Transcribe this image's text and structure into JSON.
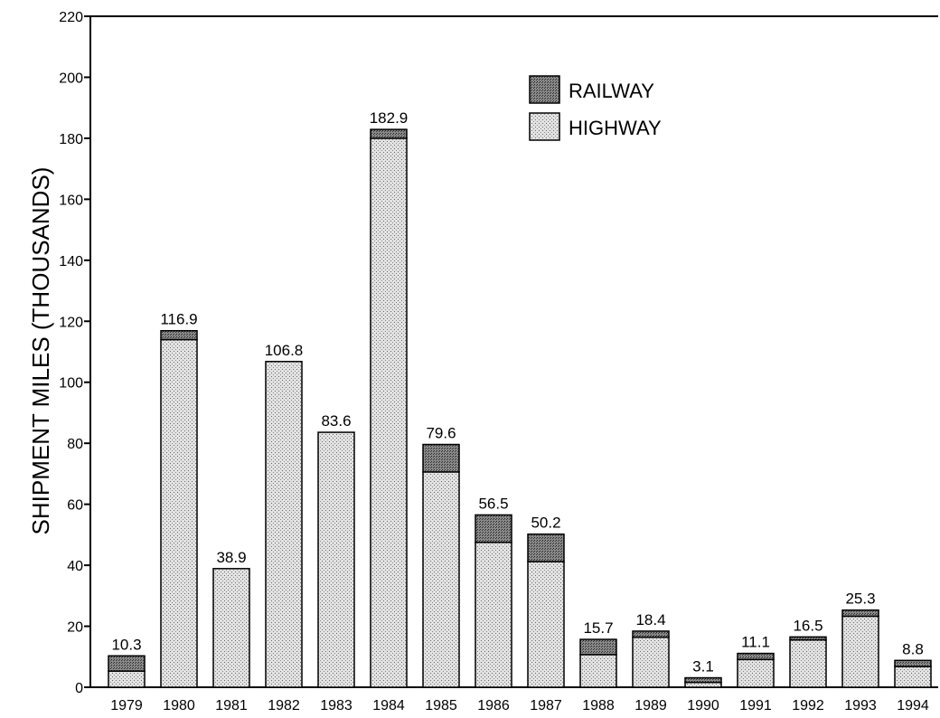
{
  "chart_data": {
    "type": "bar",
    "stacked": true,
    "title": "",
    "xlabel": "",
    "ylabel": "SHIPMENT MILES (THOUSANDS)",
    "ylim": [
      0,
      220
    ],
    "yticks": [
      0,
      20,
      40,
      60,
      80,
      100,
      120,
      140,
      160,
      180,
      200,
      220
    ],
    "grid": false,
    "legend_position": "top-right",
    "categories": [
      "1979",
      "1980",
      "1981",
      "1982",
      "1983",
      "1984",
      "1985",
      "1986",
      "1987",
      "1988",
      "1989",
      "1990",
      "1991",
      "1992",
      "1993",
      "1994"
    ],
    "series": [
      {
        "name": "HIGHWAY",
        "values": [
          5.3,
          114.0,
          38.9,
          106.8,
          83.6,
          180.0,
          70.6,
          47.5,
          41.2,
          10.7,
          16.4,
          1.6,
          9.1,
          15.5,
          23.3,
          6.8
        ]
      },
      {
        "name": "RAILWAY",
        "values": [
          5.0,
          2.9,
          0.0,
          0.0,
          0.0,
          2.9,
          9.0,
          9.0,
          9.0,
          5.0,
          2.0,
          1.5,
          2.0,
          1.0,
          2.0,
          2.0
        ]
      }
    ],
    "totals": [
      10.3,
      116.9,
      38.9,
      106.8,
      83.6,
      182.9,
      79.6,
      56.5,
      50.2,
      15.7,
      18.4,
      3.1,
      11.1,
      16.5,
      25.3,
      8.8
    ],
    "total_labels": [
      "10.3",
      "116.9",
      "38.9",
      "106.8",
      "83.6",
      "182.9",
      "79.6",
      "56.5",
      "50.2",
      "15.7",
      "18.4",
      "3.1",
      "11.1",
      "16.5",
      "25.3",
      "8.8"
    ],
    "legend_entries": [
      "RAILWAY",
      "HIGHWAY"
    ],
    "colors": {
      "highway": "#cfcfcf",
      "railway": "#7f7f7f",
      "outline": "#000000"
    }
  }
}
